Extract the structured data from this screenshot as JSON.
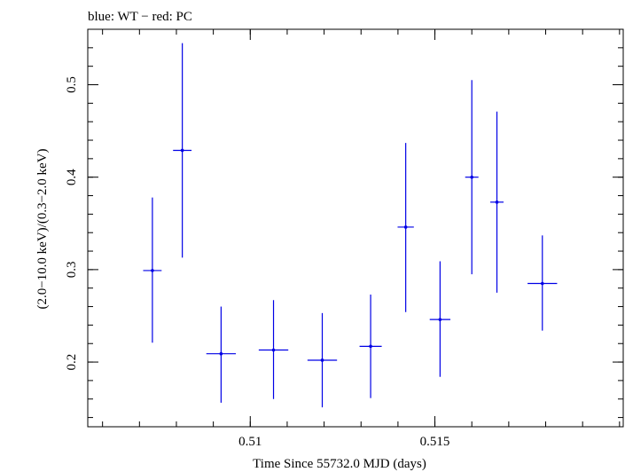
{
  "chart_data": {
    "type": "scatter",
    "title": "blue: WT − red: PC",
    "xlabel": "Time Since 55732.0 MJD (days)",
    "ylabel": "(2.0−10.0 keV)/(0.3−2.0 keV)",
    "xlim": [
      0.5056,
      0.5201
    ],
    "ylim": [
      0.13,
      0.56
    ],
    "x_ticks": [
      0.51,
      0.515
    ],
    "x_tick_labels": [
      "0.51",
      "0.515"
    ],
    "y_ticks": [
      0.2,
      0.3,
      0.4,
      0.5
    ],
    "y_tick_labels": [
      "0.2",
      "0.3",
      "0.4",
      "0.5"
    ],
    "grid": false,
    "series": [
      {
        "color": "#0000e6",
        "points": [
          {
            "x": 0.50735,
            "xerr": 0.00025,
            "y": 0.299,
            "ylo": 0.221,
            "yhi": 0.378
          },
          {
            "x": 0.50816,
            "xerr": 0.00025,
            "y": 0.429,
            "ylo": 0.313,
            "yhi": 0.545
          },
          {
            "x": 0.50921,
            "xerr": 0.0004,
            "y": 0.209,
            "ylo": 0.156,
            "yhi": 0.26
          },
          {
            "x": 0.51063,
            "xerr": 0.0004,
            "y": 0.213,
            "ylo": 0.16,
            "yhi": 0.267
          },
          {
            "x": 0.51195,
            "xerr": 0.0004,
            "y": 0.202,
            "ylo": 0.151,
            "yhi": 0.253
          },
          {
            "x": 0.51326,
            "xerr": 0.0003,
            "y": 0.217,
            "ylo": 0.161,
            "yhi": 0.273
          },
          {
            "x": 0.51421,
            "xerr": 0.00022,
            "y": 0.346,
            "ylo": 0.254,
            "yhi": 0.437
          },
          {
            "x": 0.51514,
            "xerr": 0.00028,
            "y": 0.246,
            "ylo": 0.184,
            "yhi": 0.309
          },
          {
            "x": 0.516,
            "xerr": 0.00018,
            "y": 0.4,
            "ylo": 0.295,
            "yhi": 0.505
          },
          {
            "x": 0.51668,
            "xerr": 0.00018,
            "y": 0.373,
            "ylo": 0.275,
            "yhi": 0.471
          },
          {
            "x": 0.51791,
            "xerr": 0.0004,
            "y": 0.285,
            "ylo": 0.234,
            "yhi": 0.337
          }
        ]
      }
    ]
  }
}
